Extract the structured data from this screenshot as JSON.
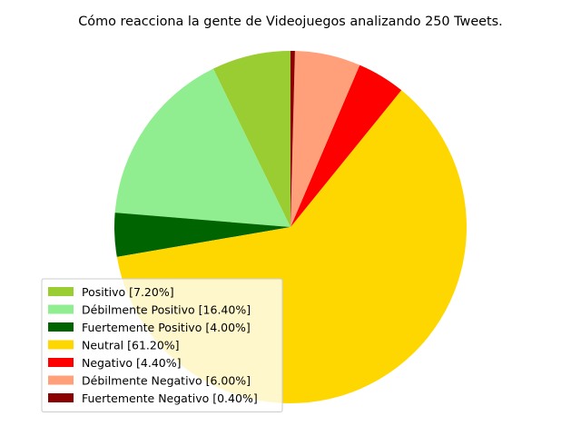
{
  "chart_data": {
    "type": "pie",
    "title": "Cómo reacciona la gente de Videojuegos analizando 250 Tweets.",
    "slices": [
      {
        "label": "Positivo [7.20%]",
        "value": 7.2,
        "color": "#9acd32"
      },
      {
        "label": "Débilmente Positivo [16.40%]",
        "value": 16.4,
        "color": "#90ee90"
      },
      {
        "label": "Fuertemente Positivo [4.00%]",
        "value": 4.0,
        "color": "#006400"
      },
      {
        "label": "Neutral [61.20%]",
        "value": 61.2,
        "color": "#ffd700"
      },
      {
        "label": "Negativo [4.40%]",
        "value": 4.4,
        "color": "#ff0000"
      },
      {
        "label": "Débilmente Negativo [6.00%]",
        "value": 6.0,
        "color": "#ffa07a"
      },
      {
        "label": "Fuertemente Negativo [0.40%]",
        "value": 0.4,
        "color": "#8b0000"
      }
    ],
    "start_angle_deg": 90,
    "direction": "counterclockwise",
    "legend_position": "lower-left"
  }
}
